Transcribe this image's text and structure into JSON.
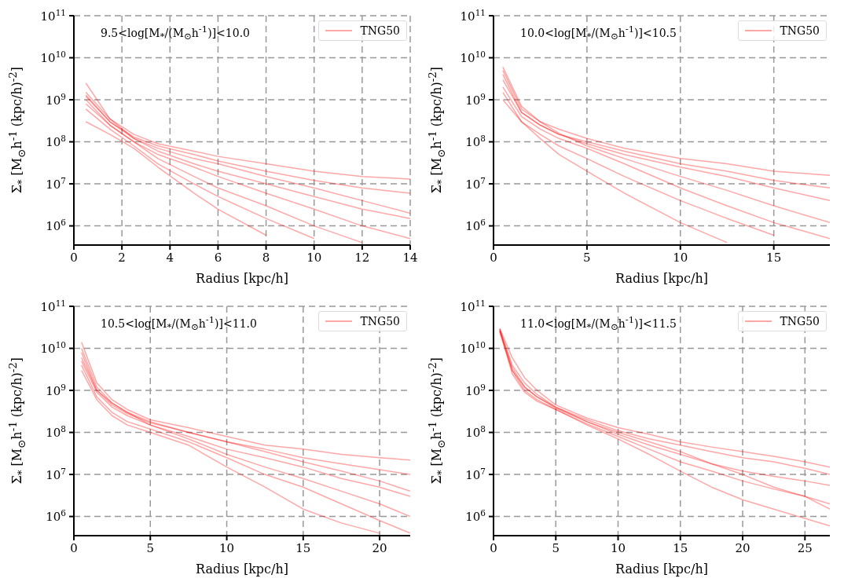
{
  "chart_data": [
    {
      "type": "line",
      "xlabel": "Radius [kpc/h]",
      "ylabel": "Σ$_{*}$ [M$_{⊙}$h$^{-1}$ (kpc/h)$^{-2}$]",
      "annotations": [
        "9.5<log[M$_{*}$/(M$_{⊙}$h$^{-1}$)]<10.0"
      ],
      "log": "y",
      "grid": true,
      "legend": "top right",
      "xlim": [
        0,
        14
      ],
      "xticks": [
        0,
        2,
        4,
        6,
        8,
        10,
        12,
        14
      ],
      "ylim": [
        350000,
        100000000000
      ],
      "yticks": [
        {
          "value": 1000000,
          "label": "10$^{6}$"
        },
        {
          "value": 10000000,
          "label": "10$^{7}$"
        },
        {
          "value": 100000000,
          "label": "10$^{8}$"
        },
        {
          "value": 1000000000,
          "label": "10$^{9}$"
        },
        {
          "value": 10000000000,
          "label": "10$^{10}$"
        },
        {
          "value": 100000000000,
          "label": "10$^{11}$"
        }
      ],
      "x": [
        0.5,
        1.5,
        2.5,
        3.5,
        5,
        6,
        8,
        10,
        12,
        14
      ],
      "series": [
        {
          "name": "TNG50",
          "color": "#ff0000",
          "values": [
            1500000000.0,
            350000000.0,
            150000000.0,
            90000000.0,
            60000000.0,
            45000000.0,
            30000000.0,
            20000000.0,
            15000000.0,
            13000000.0
          ]
        },
        {
          "color": "#ff0000",
          "values": [
            1200000000.0,
            300000000.0,
            130000000.0,
            80000000.0,
            50000000.0,
            35000000.0,
            20000000.0,
            12000000.0,
            8000000.0,
            6000000.0
          ]
        },
        {
          "color": "#ff0000",
          "values": [
            2500000000.0,
            350000000.0,
            120000000.0,
            60000000.0,
            30000000.0,
            20000000.0,
            10000000.0,
            5000000.0,
            2500000.0,
            1500000.0
          ]
        },
        {
          "color": "#ff0000",
          "values": [
            1000000000.0,
            250000000.0,
            100000000.0,
            50000000.0,
            25000000.0,
            15000000.0,
            6000000.0,
            2500000.0,
            1000000.0,
            500000.0
          ]
        },
        {
          "color": "#ff0000",
          "values": [
            800000000.0,
            250000000.0,
            100000000.0,
            40000000.0,
            15000000.0,
            8000000.0,
            3000000.0,
            1000000.0,
            400000.0,
            null
          ]
        },
        {
          "color": "#ff0000",
          "values": [
            600000000.0,
            200000000.0,
            80000000.0,
            30000000.0,
            10000000.0,
            5000000.0,
            1500000.0,
            500000.0,
            null,
            null
          ]
        },
        {
          "color": "#ff0000",
          "values": [
            300000000.0,
            150000000.0,
            70000000.0,
            25000000.0,
            6000000.0,
            2500000.0,
            600000.0,
            null,
            null,
            null
          ]
        },
        {
          "color": "#ff0000",
          "values": [
            1300000000.0,
            300000000.0,
            120000000.0,
            70000000.0,
            40000000.0,
            30000000.0,
            15000000.0,
            8000000.0,
            4000000.0,
            2000000.0
          ]
        }
      ]
    },
    {
      "type": "line",
      "xlabel": "Radius [kpc/h]",
      "ylabel": "Σ$_{*}$ [M$_{⊙}$h$^{-1}$ (kpc/h)$^{-2}$]",
      "annotations": [
        "10.0<log[M$_{*}$/(M$_{⊙}$h$^{-1}$)]<10.5"
      ],
      "log": "y",
      "grid": true,
      "legend": "top right",
      "xlim": [
        0,
        18
      ],
      "xticks": [
        0,
        5,
        10,
        15
      ],
      "ylim": [
        350000,
        100000000000
      ],
      "yticks": [
        {
          "value": 1000000,
          "label": "10$^{6}$"
        },
        {
          "value": 10000000,
          "label": "10$^{7}$"
        },
        {
          "value": 100000000,
          "label": "10$^{8}$"
        },
        {
          "value": 1000000000,
          "label": "10$^{9}$"
        },
        {
          "value": 10000000000,
          "label": "10$^{10}$"
        },
        {
          "value": 100000000000,
          "label": "10$^{11}$"
        }
      ],
      "x": [
        0.5,
        1.5,
        2.5,
        3.5,
        5,
        7,
        10,
        12.5,
        15,
        18
      ],
      "series": [
        {
          "name": "TNG50",
          "color": "#ff0000",
          "values": [
            5000000000.0,
            600000000.0,
            300000000.0,
            200000000.0,
            120000000.0,
            70000000.0,
            40000000.0,
            30000000.0,
            20000000.0,
            16000000.0
          ]
        },
        {
          "color": "#ff0000",
          "values": [
            3000000000.0,
            500000000.0,
            250000000.0,
            150000000.0,
            90000000.0,
            50000000.0,
            25000000.0,
            15000000.0,
            8000000.0,
            4000000.0
          ]
        },
        {
          "color": "#ff0000",
          "values": [
            6000000000.0,
            700000000.0,
            300000000.0,
            160000000.0,
            80000000.0,
            40000000.0,
            15000000.0,
            7000000.0,
            3000000.0,
            1200000.0
          ]
        },
        {
          "color": "#ff0000",
          "values": [
            2000000000.0,
            400000000.0,
            200000000.0,
            120000000.0,
            70000000.0,
            30000000.0,
            8000000.0,
            3000000.0,
            1200000.0,
            500000.0
          ]
        },
        {
          "color": "#ff0000",
          "values": [
            1500000000.0,
            300000000.0,
            150000000.0,
            80000000.0,
            40000000.0,
            15000000.0,
            4000000.0,
            1500000.0,
            600000.0,
            null
          ]
        },
        {
          "color": "#ff0000",
          "values": [
            1000000000.0,
            300000000.0,
            120000000.0,
            50000000.0,
            20000000.0,
            6000000.0,
            1200000.0,
            400000.0,
            null,
            null
          ]
        },
        {
          "color": "#ff0000",
          "values": [
            4000000000.0,
            500000000.0,
            250000000.0,
            150000000.0,
            100000000.0,
            60000000.0,
            30000000.0,
            20000000.0,
            12000000.0,
            8000000.0
          ]
        }
      ]
    },
    {
      "type": "line",
      "xlabel": "Radius [kpc/h]",
      "ylabel": "Σ$_{*}$ [M$_{⊙}$h$^{-1}$ (kpc/h)$^{-2}$]",
      "annotations": [
        "10.5<log[M$_{*}$/(M$_{⊙}$h$^{-1}$)]<11.0"
      ],
      "log": "y",
      "grid": true,
      "legend": "top right",
      "xlim": [
        0,
        22
      ],
      "xticks": [
        0,
        5,
        10,
        15,
        20
      ],
      "ylim": [
        350000,
        100000000000
      ],
      "yticks": [
        {
          "value": 1000000,
          "label": "10$^{6}$"
        },
        {
          "value": 10000000,
          "label": "10$^{7}$"
        },
        {
          "value": 100000000,
          "label": "10$^{8}$"
        },
        {
          "value": 1000000000,
          "label": "10$^{9}$"
        },
        {
          "value": 10000000000,
          "label": "10$^{10}$"
        },
        {
          "value": 100000000000,
          "label": "10$^{11}$"
        }
      ],
      "x": [
        0.5,
        1.5,
        2.5,
        3.5,
        5,
        7.5,
        10,
        12.5,
        15,
        17.5,
        20,
        22
      ],
      "series": [
        {
          "name": "TNG50",
          "color": "#ff0000",
          "values": [
            14000000000.0,
            1500000000.0,
            600000000.0,
            350000000.0,
            200000000.0,
            130000000.0,
            80000000.0,
            50000000.0,
            40000000.0,
            30000000.0,
            25000000.0,
            22000000.0
          ]
        },
        {
          "color": "#ff0000",
          "values": [
            8000000000.0,
            1000000000.0,
            500000000.0,
            300000000.0,
            180000000.0,
            100000000.0,
            60000000.0,
            40000000.0,
            25000000.0,
            18000000.0,
            13000000.0,
            10000000.0
          ]
        },
        {
          "color": "#ff0000",
          "values": [
            5000000000.0,
            900000000.0,
            400000000.0,
            250000000.0,
            150000000.0,
            80000000.0,
            40000000.0,
            25000000.0,
            15000000.0,
            8000000.0,
            5000000.0,
            3000000.0
          ]
        },
        {
          "color": "#ff0000",
          "values": [
            10000000000.0,
            1200000000.0,
            500000000.0,
            300000000.0,
            150000000.0,
            70000000.0,
            30000000.0,
            15000000.0,
            8000000.0,
            4000000.0,
            2000000.0,
            1000000.0
          ]
        },
        {
          "color": "#ff0000",
          "values": [
            3000000000.0,
            600000000.0,
            250000000.0,
            150000000.0,
            100000000.0,
            50000000.0,
            15000000.0,
            5000000.0,
            1500000.0,
            700000.0,
            400000.0,
            null
          ]
        },
        {
          "color": "#ff0000",
          "values": [
            4000000000.0,
            700000000.0,
            300000000.0,
            180000000.0,
            120000000.0,
            60000000.0,
            25000000.0,
            10000000.0,
            5000000.0,
            2000000.0,
            800000.0,
            400000.0
          ]
        },
        {
          "color": "#ff0000",
          "values": [
            6000000000.0,
            1000000000.0,
            450000000.0,
            280000000.0,
            170000000.0,
            100000000.0,
            60000000.0,
            35000000.0,
            20000000.0,
            12000000.0,
            7000000.0,
            4000000.0
          ]
        }
      ]
    },
    {
      "type": "line",
      "xlabel": "Radius [kpc/h]",
      "ylabel": "Σ$_{*}$ [M$_{⊙}$h$^{-1}$ (kpc/h)$^{-2}$]",
      "annotations": [
        "11.0<log[M$_{*}$/(M$_{⊙}$h$^{-1}$)]<11.5"
      ],
      "log": "y",
      "grid": true,
      "legend": "top right",
      "xlim": [
        0,
        27
      ],
      "xticks": [
        0,
        5,
        10,
        15,
        20,
        25
      ],
      "ylim": [
        350000,
        100000000000
      ],
      "yticks": [
        {
          "value": 1000000,
          "label": "10$^{6}$"
        },
        {
          "value": 10000000,
          "label": "10$^{7}$"
        },
        {
          "value": 100000000,
          "label": "10$^{8}$"
        },
        {
          "value": 1000000000,
          "label": "10$^{9}$"
        },
        {
          "value": 10000000000,
          "label": "10$^{10}$"
        },
        {
          "value": 100000000000,
          "label": "10$^{11}$"
        }
      ],
      "x": [
        0.5,
        1.5,
        2.5,
        3.5,
        5,
        7.5,
        10,
        12.5,
        15,
        17.5,
        20,
        22.5,
        25,
        27
      ],
      "series": [
        {
          "name": "TNG50",
          "color": "#ff0000",
          "values": [
            30000000000.0,
            6000000000.0,
            2000000000.0,
            1000000000.0,
            450000000.0,
            220000000.0,
            130000000.0,
            90000000.0,
            60000000.0,
            45000000.0,
            35000000.0,
            27000000.0,
            20000000.0,
            15000000.0
          ]
        },
        {
          "color": "#ff0000",
          "values": [
            28000000000.0,
            4000000000.0,
            1500000000.0,
            800000000.0,
            400000000.0,
            200000000.0,
            110000000.0,
            70000000.0,
            50000000.0,
            35000000.0,
            25000000.0,
            20000000.0,
            14000000.0,
            10000000.0
          ]
        },
        {
          "color": "#ff0000",
          "values": [
            25000000000.0,
            3000000000.0,
            1200000000.0,
            700000000.0,
            400000000.0,
            180000000.0,
            90000000.0,
            50000000.0,
            30000000.0,
            18000000.0,
            12000000.0,
            9000000.0,
            7000000.0,
            5500000.0
          ]
        },
        {
          "color": "#ff0000",
          "values": [
            27000000000.0,
            3000000000.0,
            1000000000.0,
            600000000.0,
            350000000.0,
            160000000.0,
            80000000.0,
            40000000.0,
            20000000.0,
            12000000.0,
            7000000.0,
            4500000.0,
            3000000.0,
            2000000.0
          ]
        },
        {
          "color": "#ff0000",
          "values": [
            26000000000.0,
            2500000000.0,
            900000000.0,
            550000000.0,
            350000000.0,
            150000000.0,
            70000000.0,
            30000000.0,
            12000000.0,
            5000000.0,
            2500000.0,
            1500000.0,
            900000.0,
            600000.0
          ]
        },
        {
          "color": "#ff0000",
          "values": [
            29000000000.0,
            3500000000.0,
            1200000000.0,
            700000000.0,
            380000000.0,
            180000000.0,
            100000000.0,
            60000000.0,
            35000000.0,
            18000000.0,
            10000000.0,
            5000000.0,
            3000000.0,
            1500000.0
          ]
        }
      ]
    }
  ]
}
